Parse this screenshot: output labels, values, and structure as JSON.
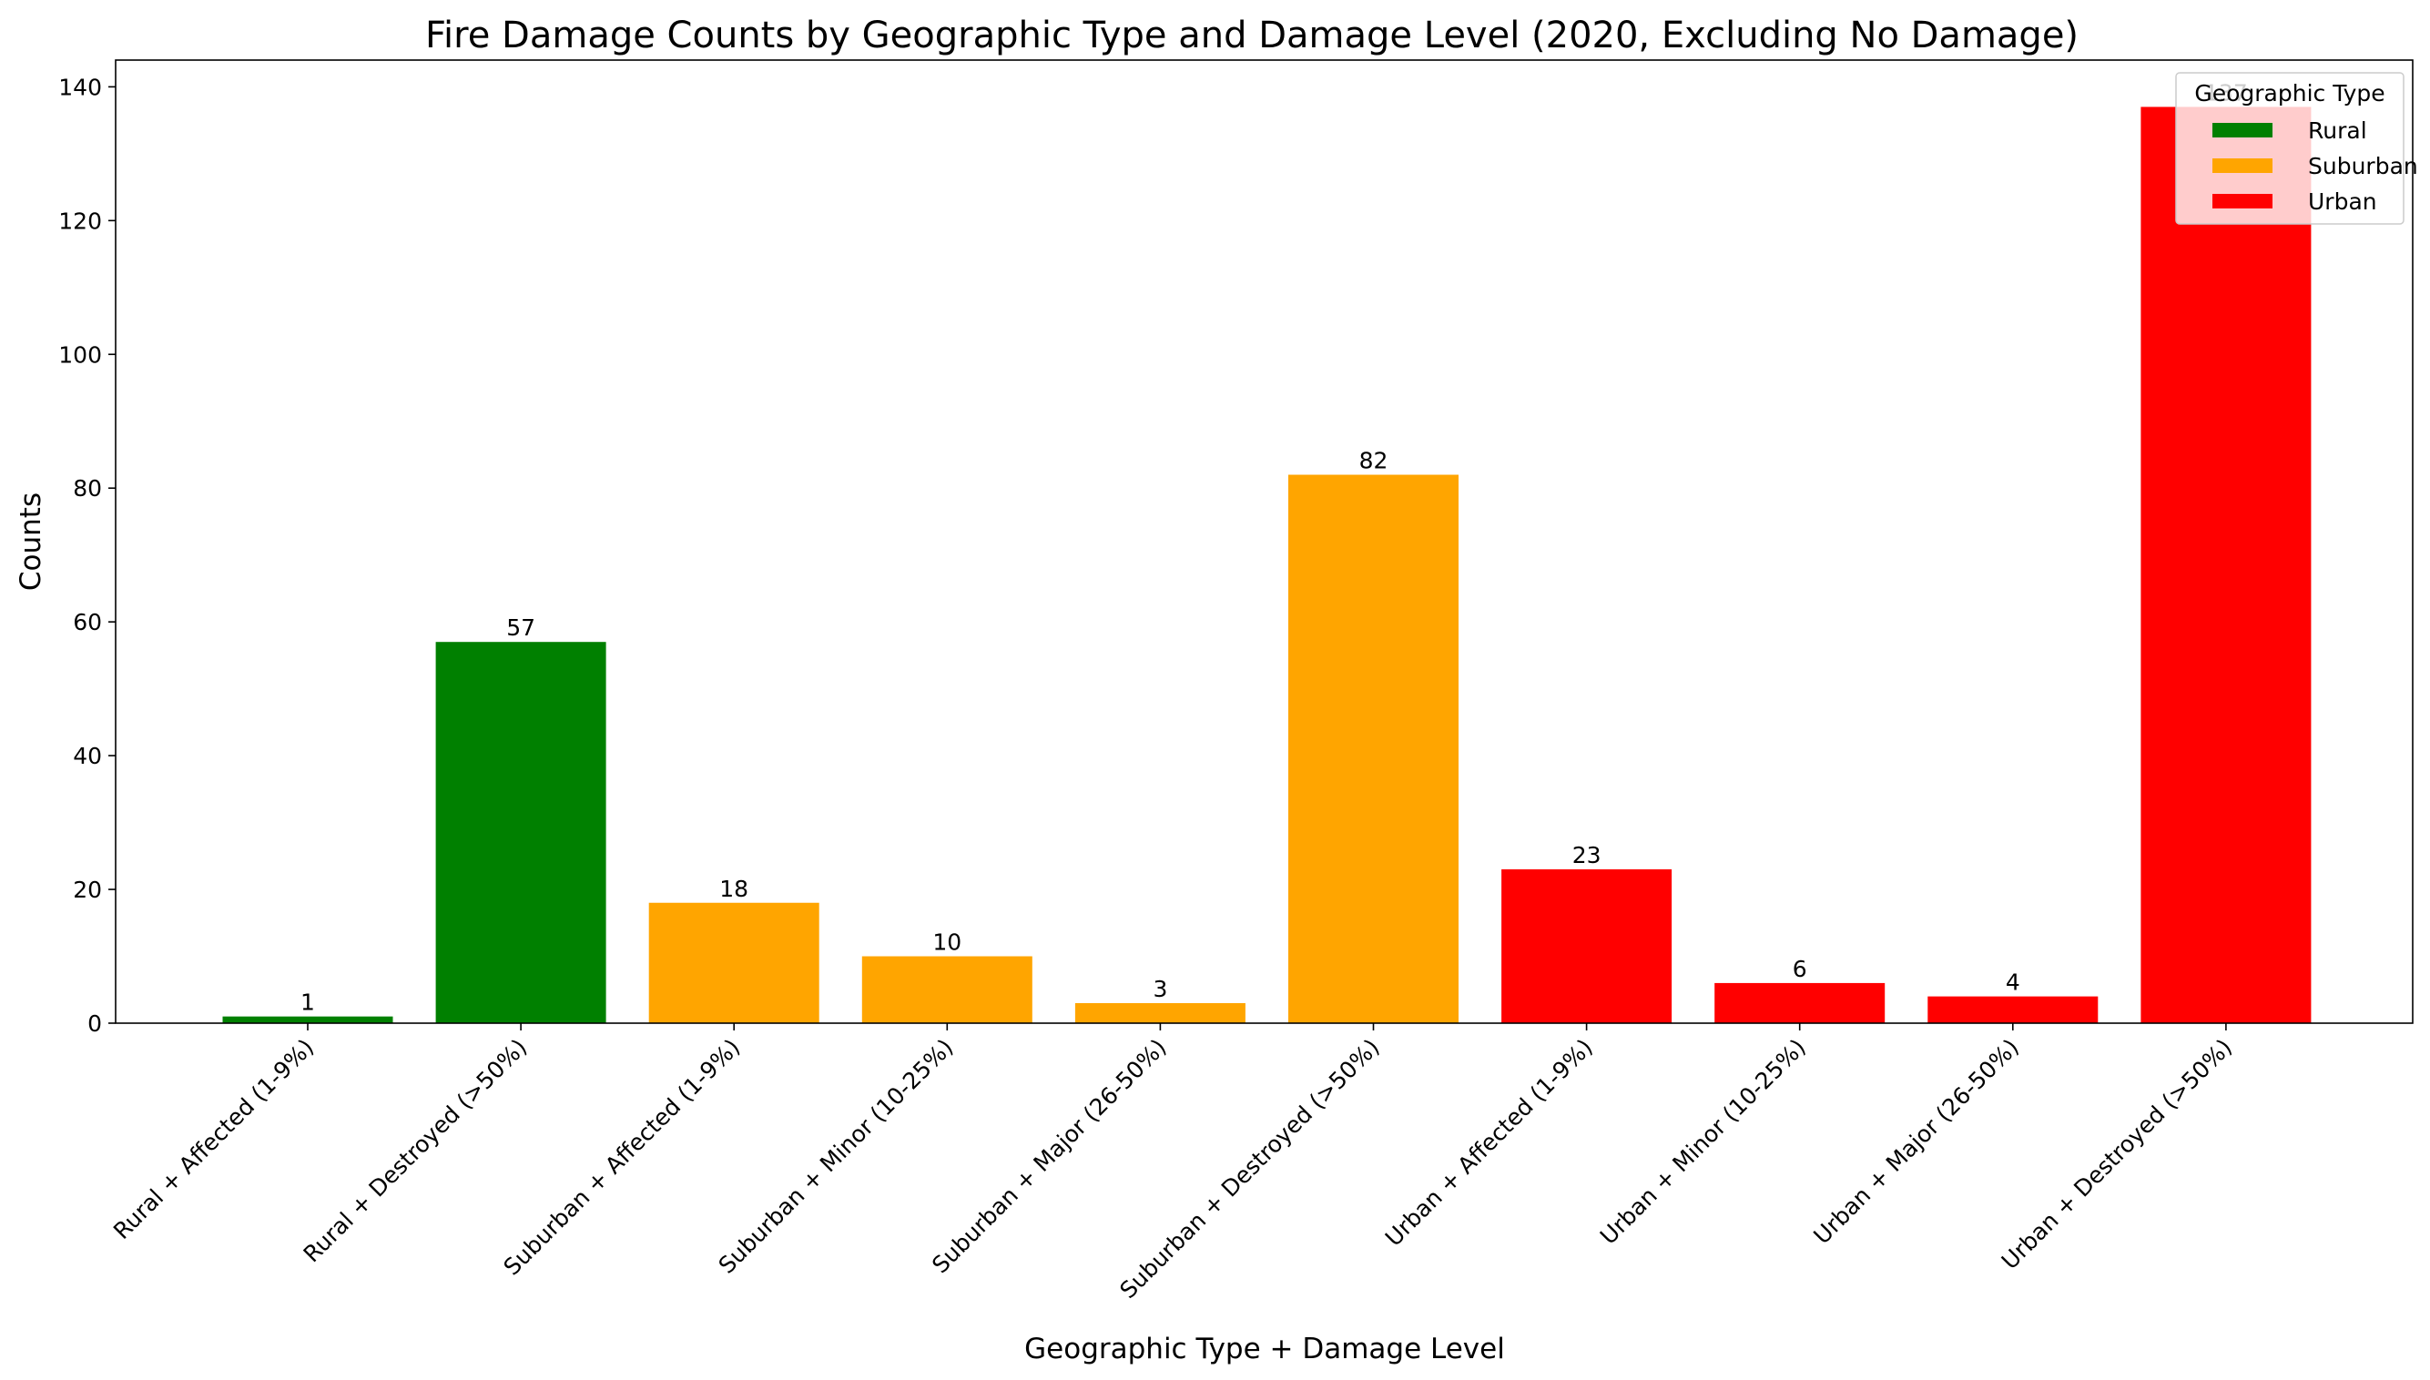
{
  "chart_data": {
    "type": "bar",
    "title": "Fire Damage Counts by Geographic Type and Damage Level (2020, Excluding No Damage)",
    "xlabel": "Geographic Type + Damage Level",
    "ylabel": "Counts",
    "ylim": [
      0,
      144
    ],
    "yticks": [
      0,
      20,
      40,
      60,
      80,
      100,
      120,
      140
    ],
    "grid": false,
    "legend": {
      "title": "Geographic Type",
      "placement": "top-right",
      "entries": [
        {
          "name": "Rural",
          "color": "#008000"
        },
        {
          "name": "Suburban",
          "color": "#FFA500"
        },
        {
          "name": "Urban",
          "color": "#FF0000"
        }
      ]
    },
    "categories": [
      "Rural + Affected (1-9%)",
      "Rural + Destroyed (>50%)",
      "Suburban + Affected (1-9%)",
      "Suburban + Minor (10-25%)",
      "Suburban + Major (26-50%)",
      "Suburban + Destroyed (>50%)",
      "Urban + Affected (1-9%)",
      "Urban + Minor (10-25%)",
      "Urban + Major (26-50%)",
      "Urban + Destroyed (>50%)"
    ],
    "values": [
      1,
      57,
      18,
      10,
      3,
      82,
      23,
      6,
      4,
      137
    ],
    "groups": [
      "Rural",
      "Rural",
      "Suburban",
      "Suburban",
      "Suburban",
      "Suburban",
      "Urban",
      "Urban",
      "Urban",
      "Urban"
    ]
  }
}
